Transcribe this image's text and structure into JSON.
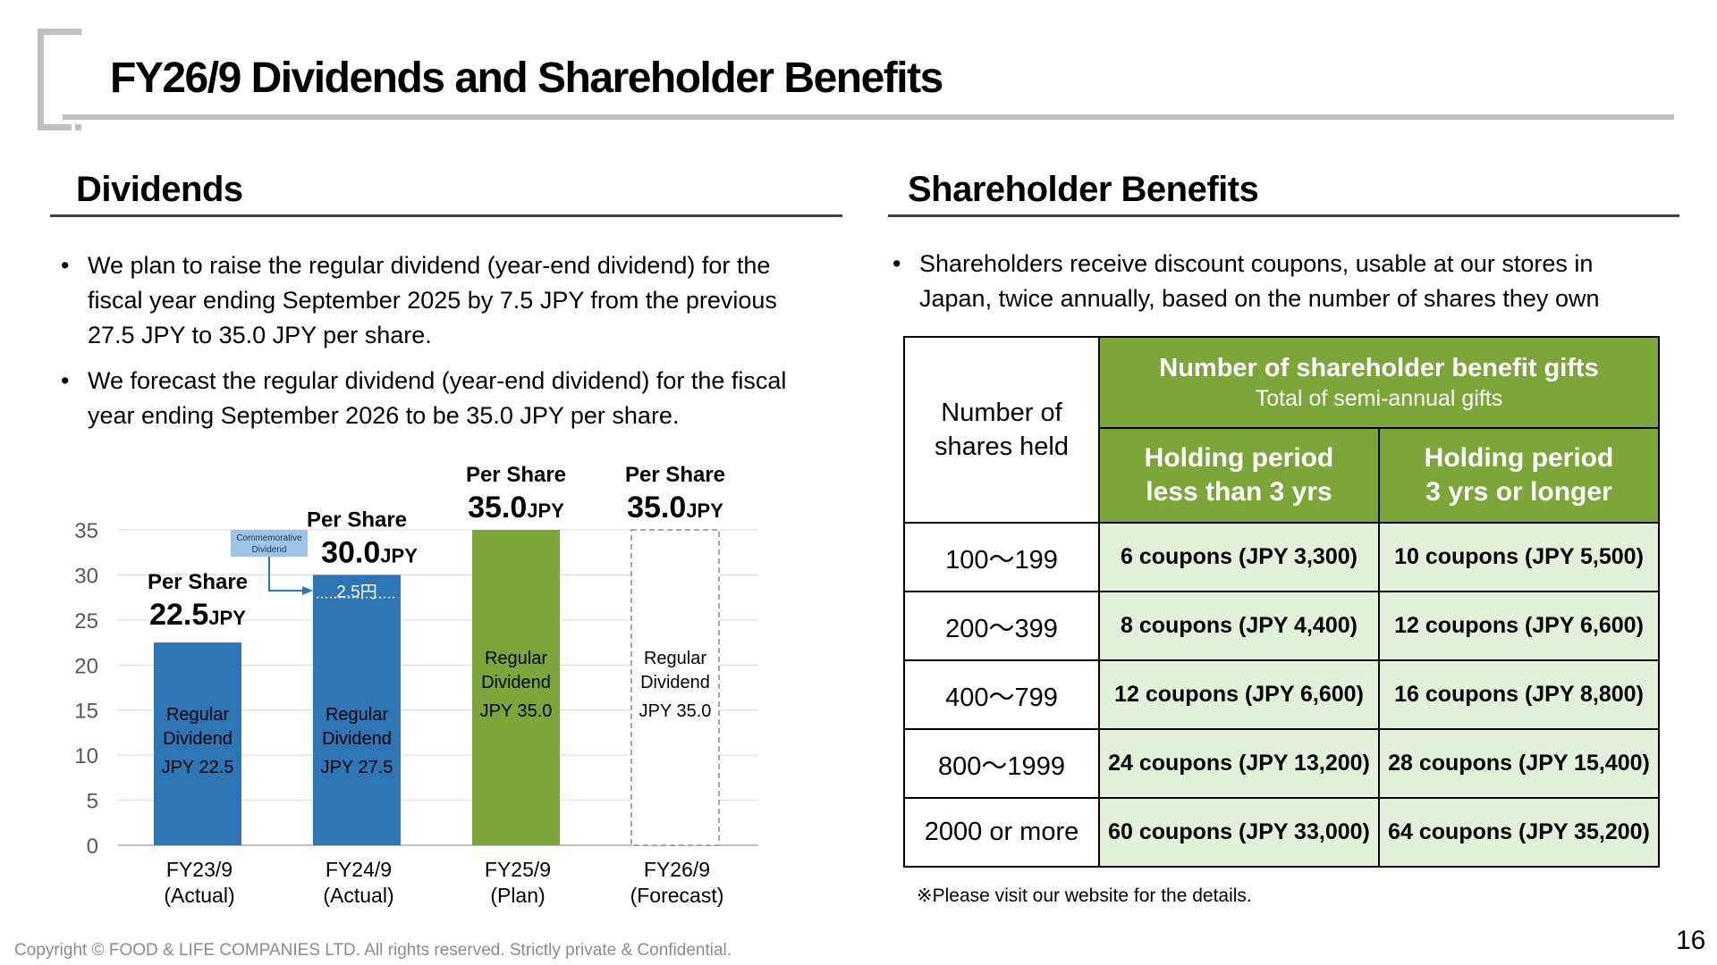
{
  "title": "FY26/9 Dividends and Shareholder Benefits",
  "dividends": {
    "heading": "Dividends",
    "bullets": [
      "We plan to raise the regular dividend (year-end dividend) for the fiscal year ending September 2025 by 7.5 JPY from the previous 27.5 JPY to 35.0 JPY per share.",
      "We forecast the regular dividend (year-end dividend) for the fiscal year ending September 2026 to be 35.0 JPY per share."
    ]
  },
  "chart_data": {
    "type": "bar",
    "stacked": true,
    "ylim": [
      0,
      35
    ],
    "yticks": [
      0,
      5,
      10,
      15,
      20,
      25,
      30,
      35
    ],
    "grid": true,
    "categories": [
      "FY23/9",
      "FY24/9",
      "FY25/9",
      "FY26/9"
    ],
    "category_sub": [
      "(Actual)",
      "(Actual)",
      "(Plan)",
      "(Forecast)"
    ],
    "series": [
      {
        "name": "Regular Dividend",
        "values": [
          22.5,
          27.5,
          35.0,
          35.0
        ],
        "bar_labels": [
          [
            "Regular",
            "Dividend",
            "JPY 22.5"
          ],
          [
            "Regular",
            "Dividend",
            "JPY 27.5"
          ],
          [
            "Regular",
            "Dividend",
            "JPY 35.0"
          ],
          [
            "Regular",
            "Dividend",
            "JPY 35.0"
          ]
        ]
      },
      {
        "name": "Commemorative Dividend",
        "values": [
          0,
          2.5,
          0,
          0
        ],
        "bar_labels": [
          "",
          "2.5円",
          "",
          ""
        ]
      }
    ],
    "bar_colors": [
      "#2e75b6",
      "#2e75b6",
      "#7ca53a",
      "none"
    ],
    "per_share_label": "Per Share",
    "per_share_values": [
      "22.5",
      "30.0",
      "35.0",
      "35.0"
    ],
    "per_share_unit": "JPY",
    "callout": [
      "Commemorative",
      "Dividend"
    ]
  },
  "benefits": {
    "heading": "Shareholder Benefits",
    "bullets": [
      "Shareholders receive discount coupons, usable at our stores in Japan, twice annually, based on the number of shares they own"
    ],
    "table": {
      "corner": [
        "Number of",
        "shares held"
      ],
      "group_title": "Number of shareholder benefit gifts",
      "group_subtitle": "Total of semi-annual gifts",
      "columns": [
        [
          "Holding period",
          "less than 3 yrs"
        ],
        [
          "Holding period",
          "3 yrs or longer"
        ]
      ],
      "rows": [
        {
          "shares": "100～199",
          "short": "6 coupons (JPY 3,300)",
          "long": "10 coupons (JPY 5,500)"
        },
        {
          "shares": "200～399",
          "short": "8 coupons (JPY 4,400)",
          "long": "12 coupons (JPY 6,600)"
        },
        {
          "shares": "400～799",
          "short": "12 coupons (JPY 6,600)",
          "long": "16 coupons (JPY 8,800)"
        },
        {
          "shares": "800～1999",
          "short": "24 coupons (JPY 13,200)",
          "long": "28 coupons (JPY 15,400)"
        },
        {
          "shares": "2000 or more",
          "short": "60 coupons (JPY 33,000)",
          "long": "64 coupons (JPY 35,200)"
        }
      ]
    },
    "note": "※Please visit our website for the details."
  },
  "footer": {
    "copyright": "Copyright © FOOD & LIFE COMPANIES LTD. All rights reserved. Strictly private & Confidential.",
    "page": "16"
  }
}
